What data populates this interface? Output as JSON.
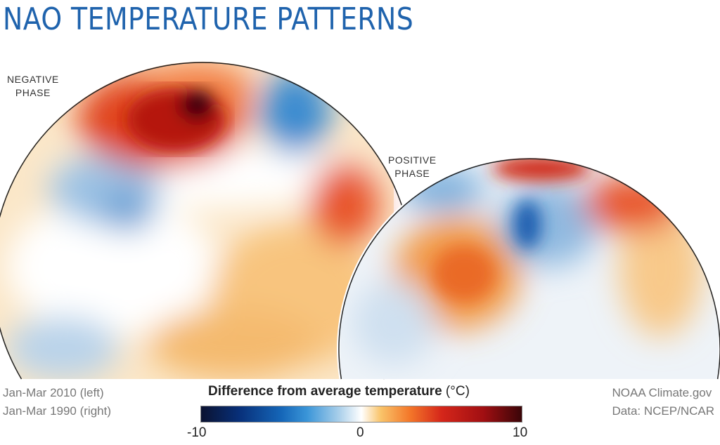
{
  "title": "NAO TEMPERATURE PATTERNS",
  "maps": [
    {
      "label_line1": "NEGATIVE",
      "label_line2": "PHASE",
      "period": "Jan-Mar 2010 (left)"
    },
    {
      "label_line1": "POSITIVE",
      "label_line2": "PHASE",
      "period": "Jan-Mar 1990 (right)"
    }
  ],
  "legend": {
    "title": "Difference from average temperature",
    "unit": "(°C)",
    "min_label": "-10",
    "mid_label": "0",
    "max_label": "10",
    "range": [
      -10,
      10
    ],
    "colors": {
      "cold": "#08307a",
      "neutral": "#ffffff",
      "warm": "#d5261a"
    }
  },
  "credits": {
    "source": "NOAA Climate.gov",
    "data": "Data: NCEP/NCAR"
  },
  "colors": {
    "title": "#1f63ad"
  }
}
